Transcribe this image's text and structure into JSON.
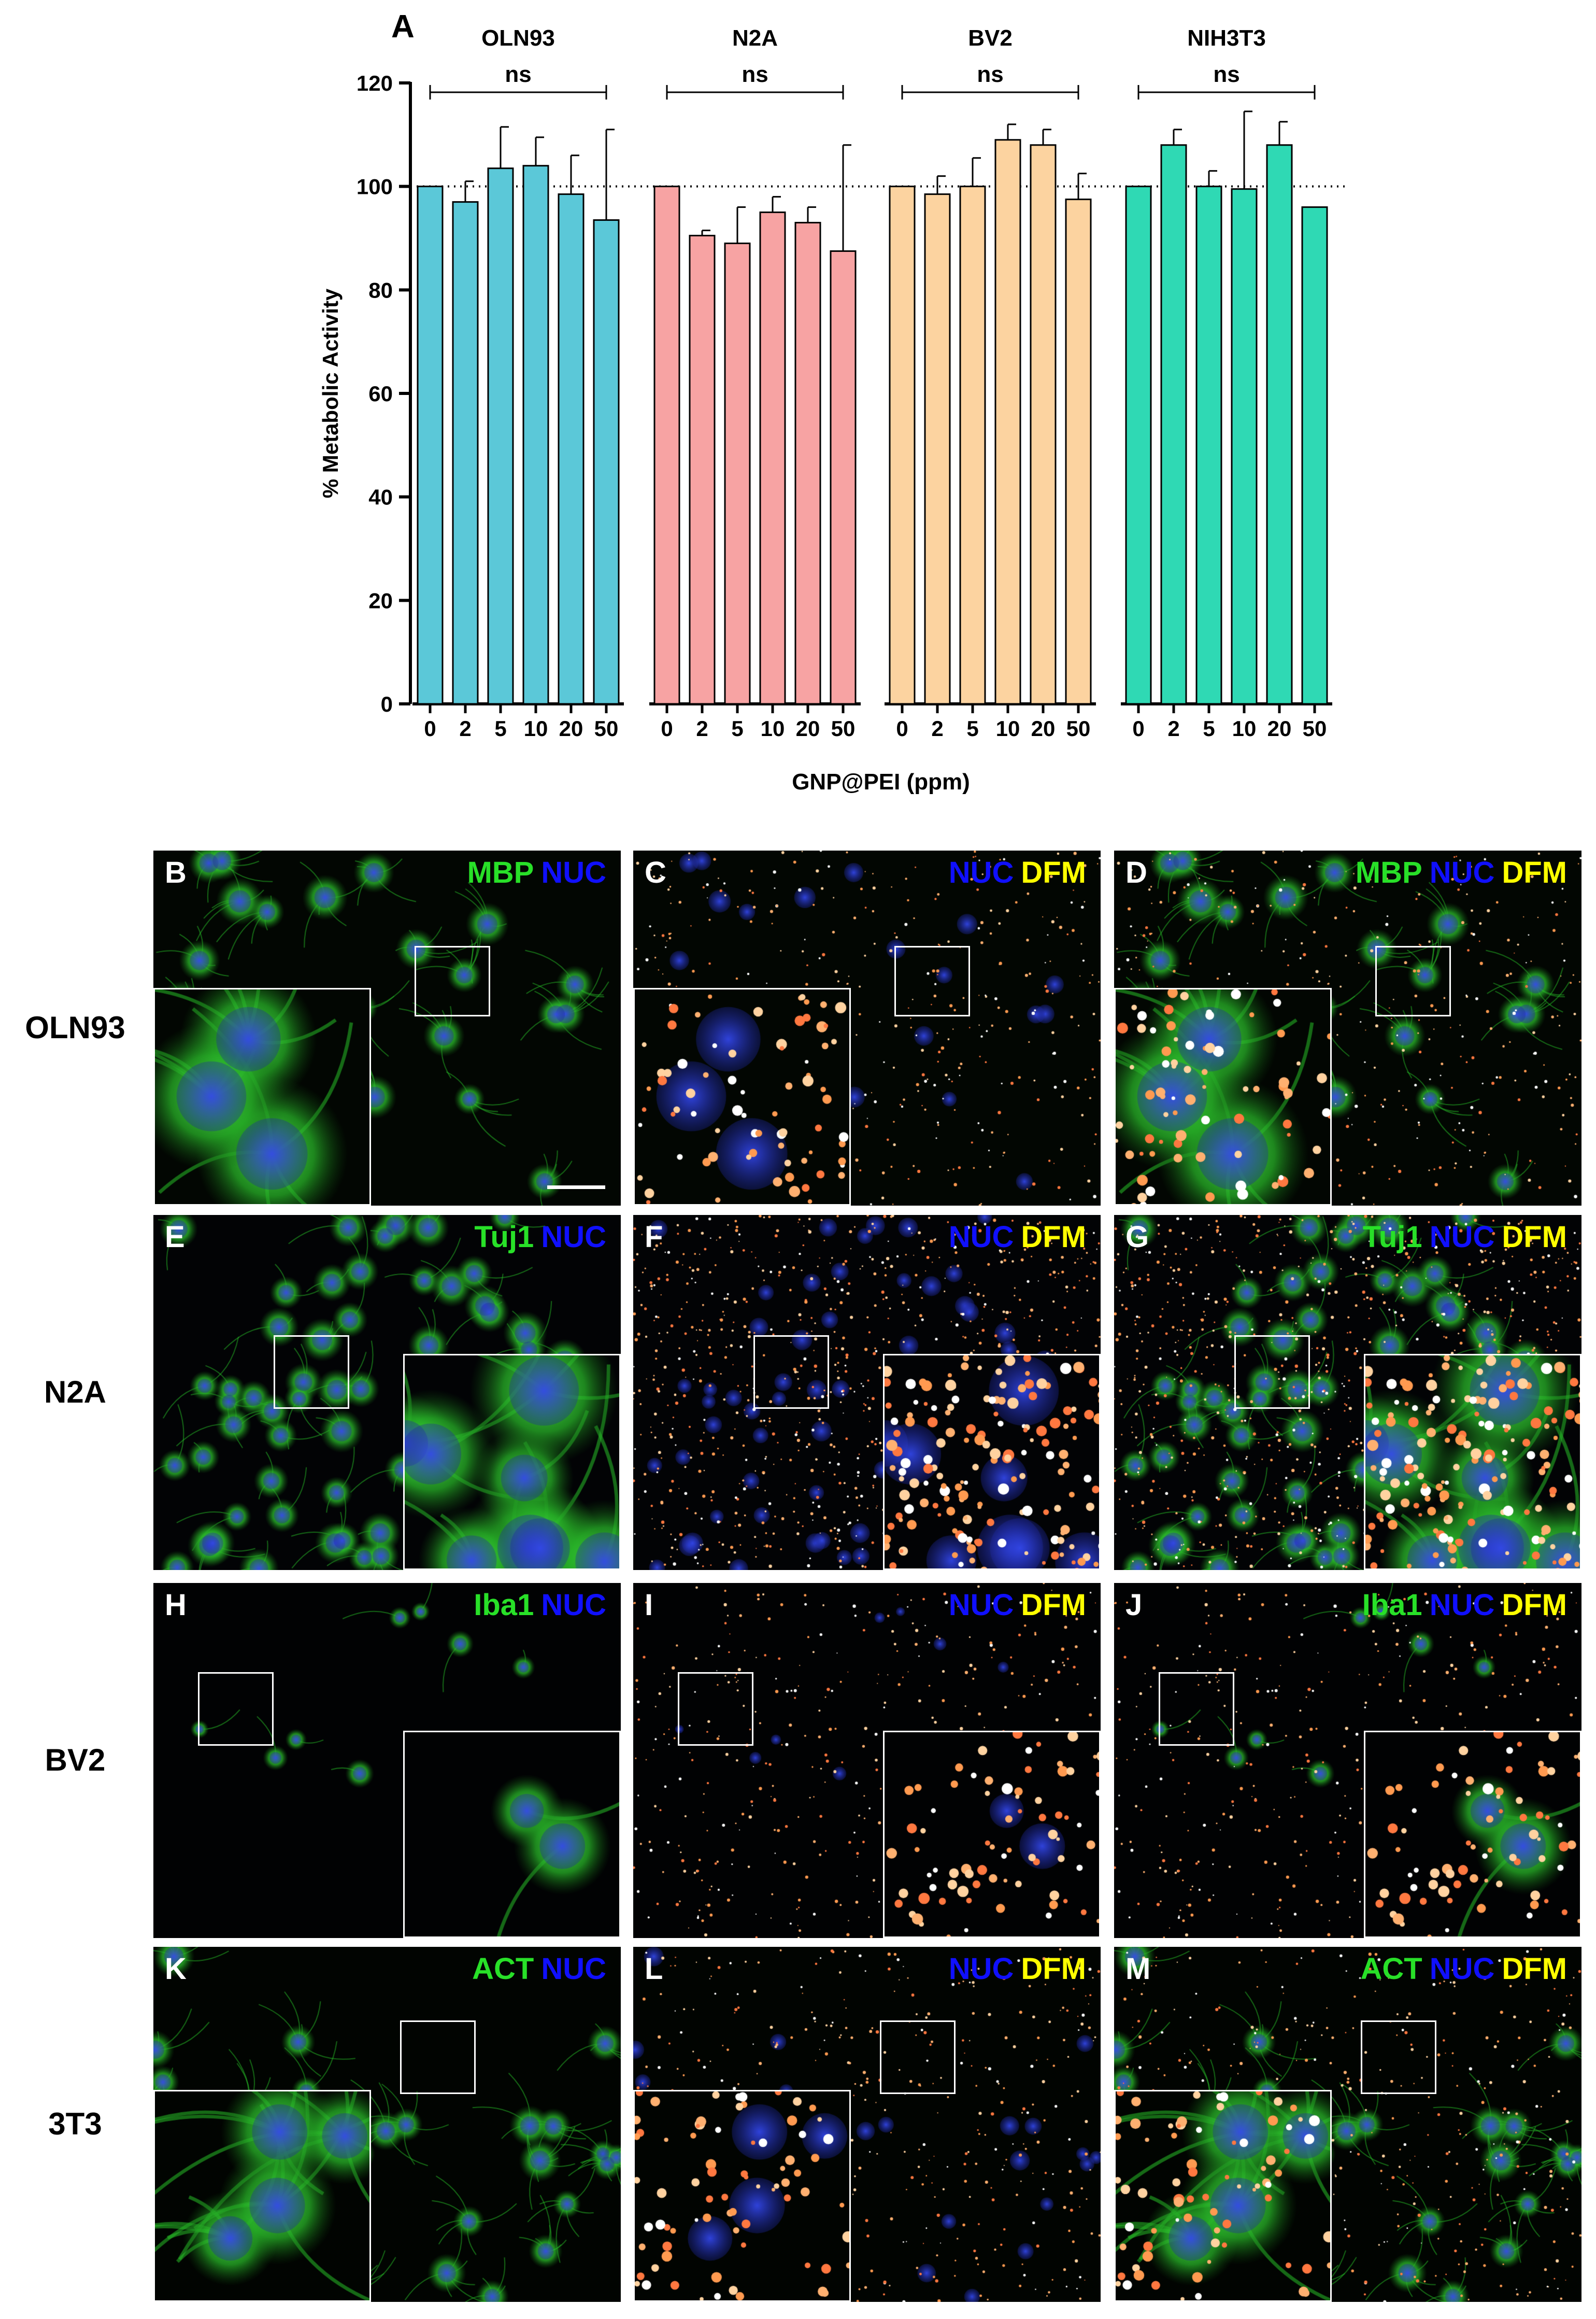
{
  "panel_a_label": "A",
  "chart_data": {
    "type": "bar",
    "ylabel": "% Metabolic Activity",
    "xlabel": "GNP@PEI (ppm)",
    "ylim": [
      0,
      120
    ],
    "yticks": [
      0,
      20,
      40,
      60,
      80,
      100,
      120
    ],
    "reference_line": 100,
    "categories": [
      "0",
      "2",
      "5",
      "10",
      "20",
      "50"
    ],
    "groups": [
      {
        "name": "OLN93",
        "color": "#5bc8d8",
        "significance": "ns",
        "values": [
          100,
          97,
          103.5,
          104,
          98.5,
          93.5
        ],
        "errors": [
          0,
          4,
          8,
          5.5,
          7.5,
          17.5
        ]
      },
      {
        "name": "N2A",
        "color": "#f7a3a3",
        "significance": "ns",
        "values": [
          100,
          90.5,
          89,
          95,
          93,
          87.5
        ],
        "errors": [
          0,
          1,
          7,
          3,
          3,
          20.5
        ]
      },
      {
        "name": "BV2",
        "color": "#fcd3a0",
        "significance": "ns",
        "values": [
          100,
          98.5,
          100,
          109,
          108,
          97.5
        ],
        "errors": [
          0,
          3.5,
          5.5,
          3,
          3,
          5
        ]
      },
      {
        "name": "NIH3T3",
        "color": "#2fd9b4",
        "significance": "ns",
        "values": [
          100,
          108,
          100,
          99.5,
          108,
          96
        ],
        "errors": [
          0,
          3,
          3,
          15,
          4.5,
          0
        ]
      }
    ]
  },
  "micrographs": {
    "rows": [
      {
        "label": "OLN93",
        "panels": [
          {
            "letter": "B",
            "stains": [
              {
                "text": "MBP",
                "color": "green"
              },
              {
                "text": "NUC",
                "color": "blue"
              }
            ]
          },
          {
            "letter": "C",
            "stains": [
              {
                "text": "NUC",
                "color": "blue"
              },
              {
                "text": "DFM",
                "color": "yellow"
              }
            ]
          },
          {
            "letter": "D",
            "stains": [
              {
                "text": "MBP",
                "color": "green"
              },
              {
                "text": "NUC",
                "color": "blue"
              },
              {
                "text": "DFM",
                "color": "yellow"
              }
            ]
          }
        ]
      },
      {
        "label": "N2A",
        "panels": [
          {
            "letter": "E",
            "stains": [
              {
                "text": "Tuj1",
                "color": "green"
              },
              {
                "text": "NUC",
                "color": "blue"
              }
            ]
          },
          {
            "letter": "F",
            "stains": [
              {
                "text": "NUC",
                "color": "blue"
              },
              {
                "text": "DFM",
                "color": "yellow"
              }
            ]
          },
          {
            "letter": "G",
            "stains": [
              {
                "text": "Tuj1",
                "color": "green"
              },
              {
                "text": "NUC",
                "color": "blue"
              },
              {
                "text": "DFM",
                "color": "yellow"
              }
            ]
          }
        ]
      },
      {
        "label": "BV2",
        "panels": [
          {
            "letter": "H",
            "stains": [
              {
                "text": "Iba1",
                "color": "green"
              },
              {
                "text": "NUC",
                "color": "blue"
              }
            ]
          },
          {
            "letter": "I",
            "stains": [
              {
                "text": "NUC",
                "color": "blue"
              },
              {
                "text": "DFM",
                "color": "yellow"
              }
            ]
          },
          {
            "letter": "J",
            "stains": [
              {
                "text": "Iba1",
                "color": "green"
              },
              {
                "text": "NUC",
                "color": "blue"
              },
              {
                "text": "DFM",
                "color": "yellow"
              }
            ]
          }
        ]
      },
      {
        "label": "3T3",
        "panels": [
          {
            "letter": "K",
            "stains": [
              {
                "text": "ACT",
                "color": "green"
              },
              {
                "text": "NUC",
                "color": "blue"
              }
            ]
          },
          {
            "letter": "L",
            "stains": [
              {
                "text": "NUC",
                "color": "blue"
              },
              {
                "text": "DFM",
                "color": "yellow"
              }
            ]
          },
          {
            "letter": "M",
            "stains": [
              {
                "text": "ACT",
                "color": "green"
              },
              {
                "text": "NUC",
                "color": "blue"
              },
              {
                "text": "DFM",
                "color": "yellow"
              }
            ]
          }
        ]
      }
    ]
  }
}
